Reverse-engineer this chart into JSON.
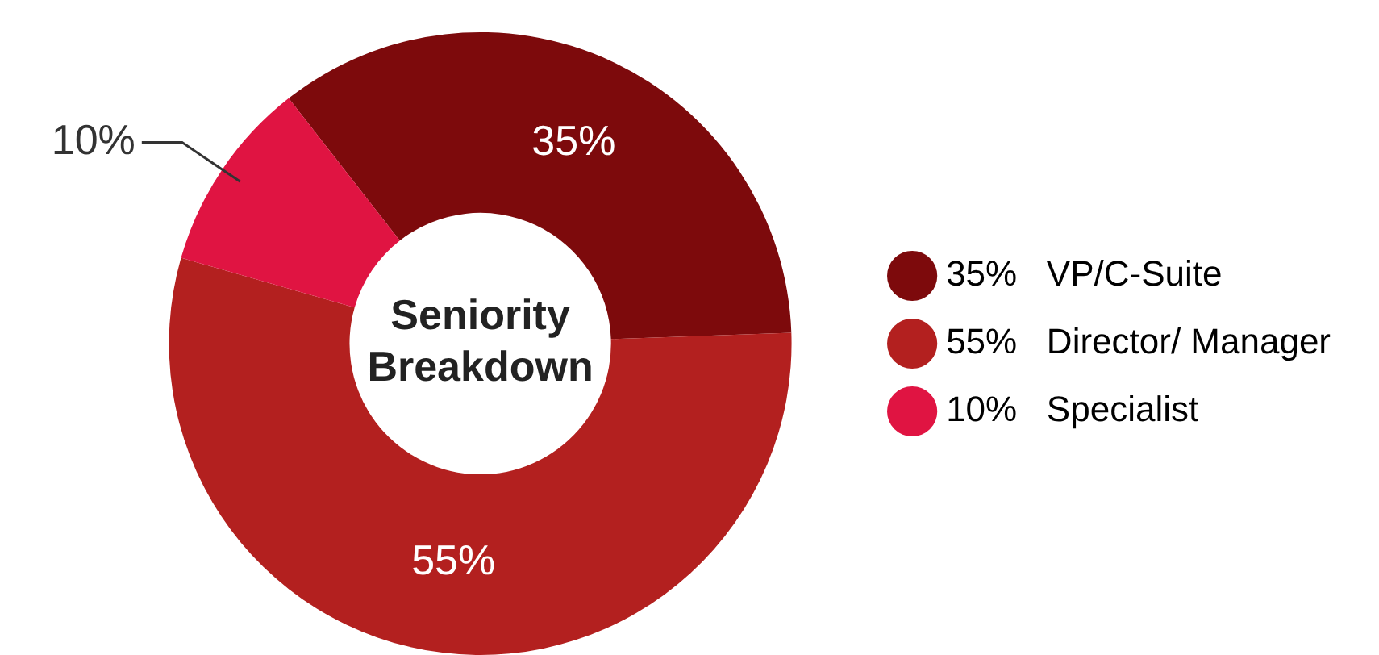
{
  "chart_data": {
    "type": "donut",
    "title": "Seniority Breakdown",
    "categories": [
      "35%   VP/C-Suite",
      "55%   Director/ Manager",
      "10%   Specialist"
    ],
    "values": [
      35,
      55,
      10
    ],
    "value_labels": [
      "35%",
      "55%",
      "10%"
    ],
    "colors": [
      "#7d0a0c",
      "#b3201f",
      "#e01442"
    ],
    "legend": "right"
  }
}
